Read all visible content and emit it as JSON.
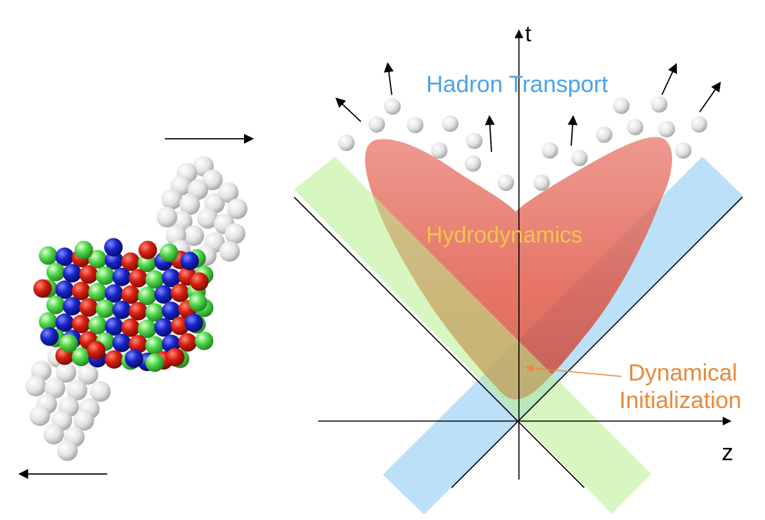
{
  "axes": {
    "t_label": "t",
    "z_label": "z"
  },
  "stages": {
    "hadron_transport": "Hadron Transport",
    "hydrodynamics": "Hydrodynamics",
    "dynamical_initialization_line1": "Dynamical",
    "dynamical_initialization_line2": "Initialization"
  },
  "colors": {
    "hadron_transport_text": "#4aa3ea",
    "hydrodynamics_text": "#f2c54a",
    "dynamical_initialization_text": "#e8893a",
    "hydro_region": "#e0513c",
    "green_band": "#b8ef8c",
    "blue_band": "#9fd3f4",
    "proton_red": "#d81e10",
    "proton_blue": "#1724c8",
    "proton_green": "#4fd84a",
    "spectator_gray": "#e4e4e4"
  }
}
